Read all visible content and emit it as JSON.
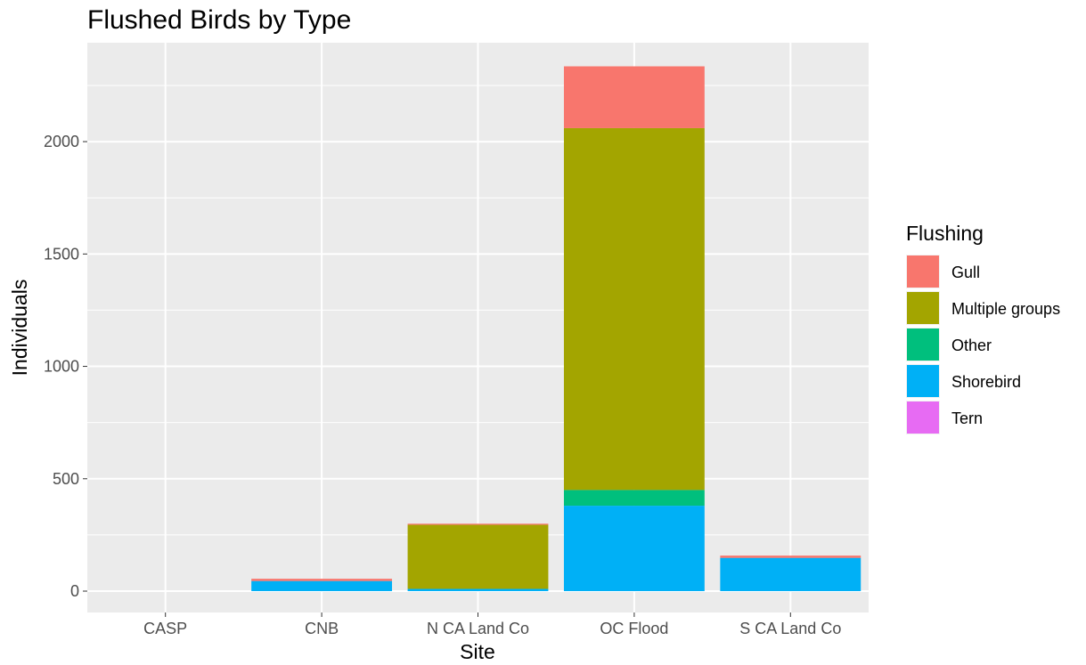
{
  "chart_data": {
    "type": "bar",
    "stacked": true,
    "title": "Flushed Birds by Type",
    "xlabel": "Site",
    "ylabel": "Individuals",
    "categories": [
      "CASP",
      "CNB",
      "N CA Land Co",
      "OC Flood",
      "S CA Land Co"
    ],
    "ylim": [
      -95,
      2440
    ],
    "yticks": [
      0,
      500,
      1000,
      1500,
      2000
    ],
    "grid": true,
    "legend_title": "Flushing",
    "legend_position": "right",
    "series": [
      {
        "name": "Shorebird",
        "color": "#00B0F6",
        "values": [
          0,
          45,
          10,
          380,
          148
        ]
      },
      {
        "name": "Other",
        "color": "#00BF7D",
        "values": [
          0,
          0,
          0,
          70,
          0
        ]
      },
      {
        "name": "Multiple groups",
        "color": "#A3A500",
        "values": [
          0,
          0,
          285,
          1610,
          0
        ]
      },
      {
        "name": "Gull",
        "color": "#F8766D",
        "values": [
          0,
          10,
          5,
          275,
          10
        ]
      },
      {
        "name": "Tern",
        "color": "#E76BF3",
        "values": [
          0,
          0,
          0,
          0,
          0
        ]
      }
    ],
    "legend_order": [
      "Gull",
      "Multiple groups",
      "Other",
      "Shorebird",
      "Tern"
    ]
  }
}
